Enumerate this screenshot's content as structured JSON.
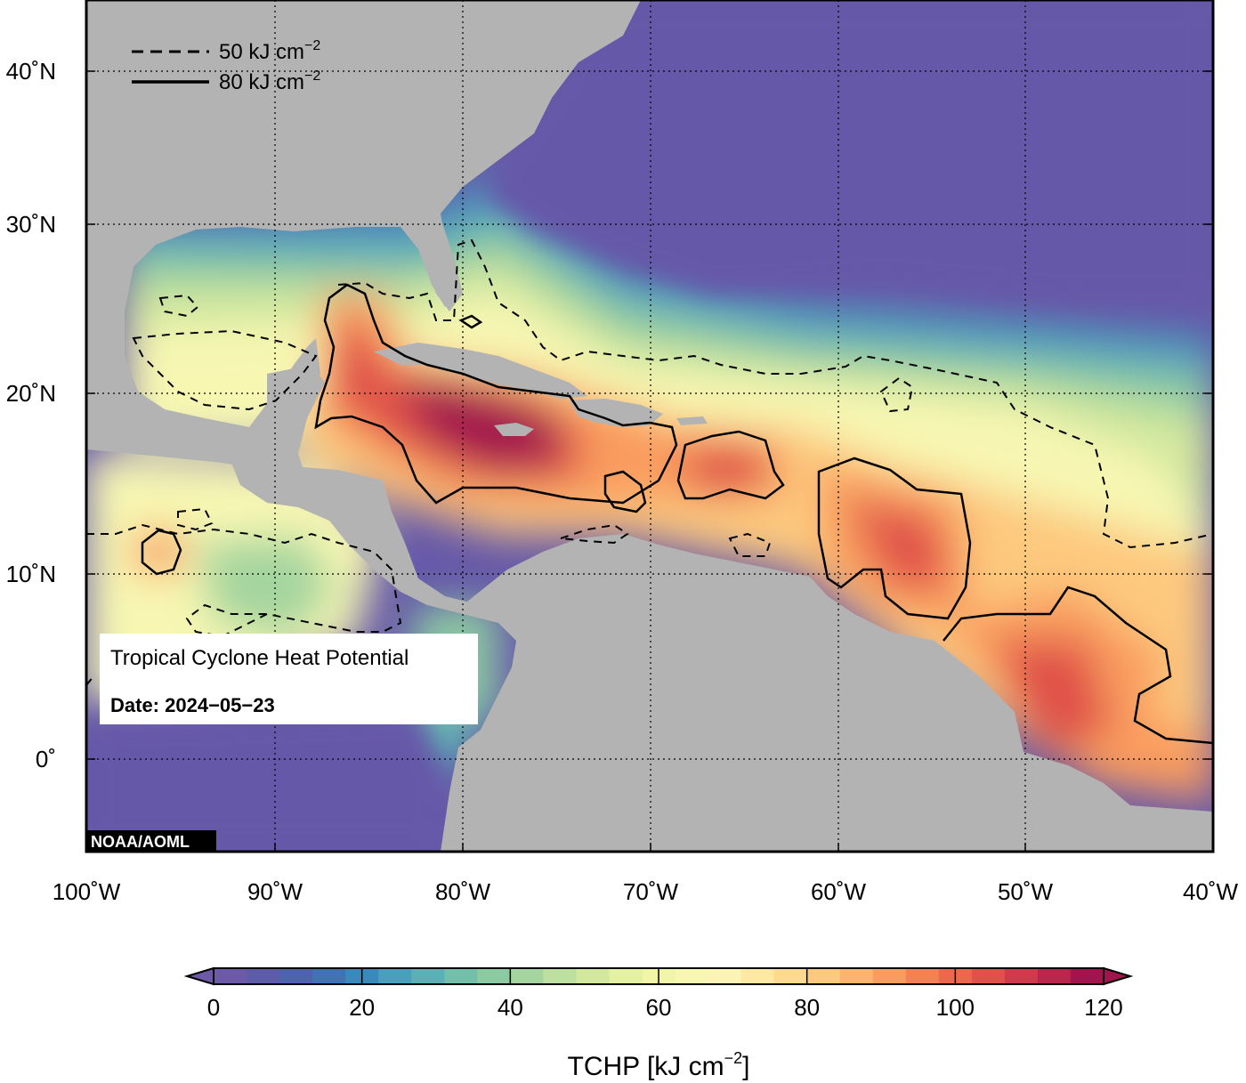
{
  "map": {
    "lon_ticks": [
      "100˚W",
      "90˚W",
      "80˚W",
      "70˚W",
      "60˚W",
      "50˚W",
      "40˚W"
    ],
    "lat_ticks": [
      "40˚N",
      "30˚N",
      "20˚N",
      "10˚N",
      "0˚"
    ],
    "legend": {
      "dashed_label": "50 kJ cm",
      "solid_label": "80 kJ cm",
      "unit_superscript": "−2"
    },
    "info_box": {
      "title": "Tropical Cyclone Heat Potential",
      "date": "Date: 2024−05−23"
    },
    "credit": "NOAA/AOML",
    "colors": {
      "land": "#b3b3b3",
      "low": "#6659a8",
      "mid": "#f7f7b2",
      "high": "#a2144d"
    }
  },
  "colorbar": {
    "ticks": [
      "0",
      "20",
      "40",
      "60",
      "80",
      "100",
      "120"
    ],
    "title_main": "TCHP [kJ cm",
    "title_sup": "−2",
    "title_end": "]",
    "colors": [
      "#6c59a8",
      "#5d5ca8",
      "#4e63ad",
      "#4173b4",
      "#3a89bd",
      "#4a9fbd",
      "#5cb0b5",
      "#73bfaa",
      "#8ccaa2",
      "#a4d59f",
      "#bddf9f",
      "#d2e89e",
      "#e4f0a2",
      "#f0f5a8",
      "#f7f7b2",
      "#fbf4b4",
      "#fde9a3",
      "#fdda90",
      "#fdc97e",
      "#fcb46e",
      "#f99c5f",
      "#f48154",
      "#ec684d",
      "#e0514a",
      "#cf3b4c",
      "#bb264d",
      "#a2144d"
    ]
  }
}
